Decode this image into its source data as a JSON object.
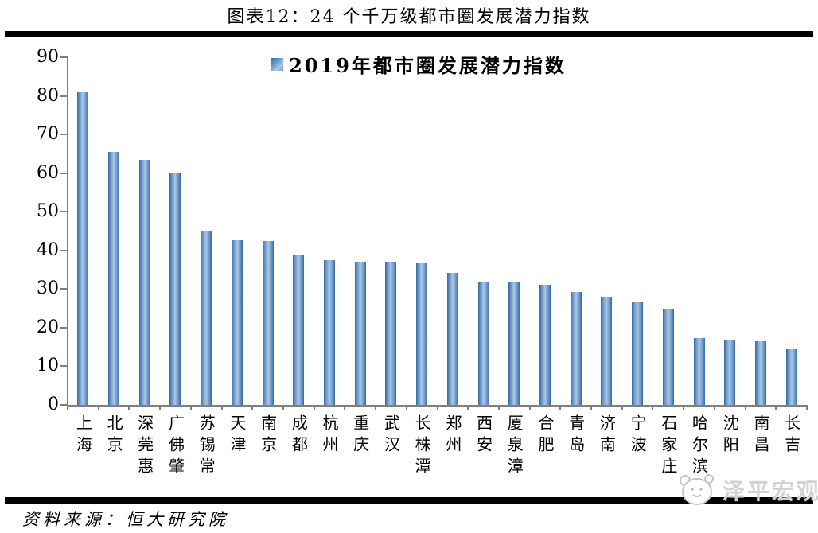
{
  "title": "图表12：24 个千万级都市圈发展潜力指数",
  "legend": {
    "label": "2019年都市圈发展潜力指数",
    "swatch_color": "#4f81bd"
  },
  "source": "资料来源：恒大研究院",
  "watermark": {
    "label": "泽平宏观",
    "icon": "panda-face-icon"
  },
  "colors": {
    "bar_edge": "#38689f",
    "bar_mid": "#abc8e6",
    "axis": "#7f7f7f",
    "rule": "#000000",
    "text": "#000000",
    "watermark_text": "#d2d2d2"
  },
  "chart_data": {
    "type": "bar",
    "title": "图表12：24 个千万级都市圈发展潜力指数",
    "legend": [
      "2019年都市圈发展潜力指数"
    ],
    "legend_position": "top-center",
    "categories": [
      "上海",
      "北京",
      "深莞惠",
      "广佛肇",
      "苏锡常",
      "天津",
      "南京",
      "成都",
      "杭州",
      "重庆",
      "武汉",
      "长株潭",
      "郑州",
      "西安",
      "厦泉漳",
      "合肥",
      "青岛",
      "济南",
      "宁波",
      "石家庄",
      "哈尔滨",
      "沈阳",
      "南昌",
      "长吉"
    ],
    "values": [
      81,
      65.5,
      63.5,
      60.2,
      45.1,
      42.7,
      42.4,
      38.8,
      37.5,
      37,
      37,
      36.6,
      34.1,
      32,
      32,
      31,
      29.3,
      28,
      26.5,
      25,
      17.3,
      16.9,
      16.4,
      14.4
    ],
    "xlabel": "",
    "ylabel": "",
    "ylim": [
      0,
      90
    ],
    "yticks": [
      0,
      10,
      20,
      30,
      40,
      50,
      60,
      70,
      80,
      90
    ],
    "grid": false
  }
}
